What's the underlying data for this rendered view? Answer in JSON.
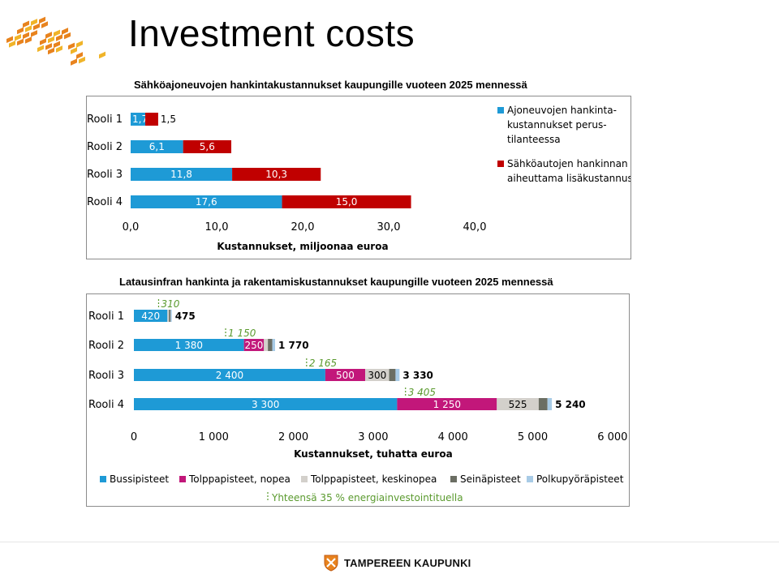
{
  "page": {
    "title": "Investment costs"
  },
  "colors": {
    "blue": "#1e9ad6",
    "red": "#c00000",
    "magenta": "#c2177a",
    "lightgray": "#d3d0cb",
    "darkgray": "#6b6e63",
    "lightblue": "#a8cbe6",
    "green": "#5a9a2e",
    "logo_orange": "#e8831e",
    "logo_yellow": "#f0b429"
  },
  "footer": {
    "brand_name": "TAMPEREEN KAUPUNKI"
  },
  "chart_data": [
    {
      "type": "bar",
      "orientation": "horizontal",
      "stacked": true,
      "title": "Sähköajoneuvojen hankintakustannukset kaupungille vuoteen 2025 mennessä",
      "categories": [
        "Rooli 1",
        "Rooli 2",
        "Rooli 3",
        "Rooli 4"
      ],
      "series": [
        {
          "name": "Ajoneuvojen hankinta-kustannukset perus-tilanteessa",
          "legend_lines": [
            "Ajoneuvojen hankinta-",
            "kustannukset perus-",
            "tilanteessa"
          ],
          "color": "#1e9ad6",
          "values": [
            1.7,
            6.1,
            11.8,
            17.6
          ],
          "labels": [
            "1,7",
            "6,1",
            "11,8",
            "17,6"
          ]
        },
        {
          "name": "Sähköautojen hankinnan aiheuttama lisäkustannus",
          "legend_lines": [
            "Sähköautojen hankinnan",
            "aiheuttama lisäkustannus"
          ],
          "color": "#c00000",
          "values": [
            1.5,
            5.6,
            10.3,
            15.0
          ],
          "labels": [
            "1,5",
            "5,6",
            "10,3",
            "15,0"
          ]
        }
      ],
      "xlabel": "Kustannukset, miljoonaa euroa",
      "xlim": [
        0,
        40
      ],
      "xticks": [
        0,
        10,
        20,
        30,
        40
      ],
      "xtick_labels": [
        "0,0",
        "10,0",
        "20,0",
        "30,0",
        "40,0"
      ],
      "legend_position": "right",
      "grid": false
    },
    {
      "type": "bar",
      "orientation": "horizontal",
      "stacked": true,
      "title": "Latausinfran hankinta ja  rakentamiskustannukset kaupungille vuoteen 2025 mennessä",
      "categories": [
        "Rooli 1",
        "Rooli 2",
        "Rooli 3",
        "Rooli 4"
      ],
      "series": [
        {
          "name": "Bussipisteet",
          "color": "#1e9ad6",
          "values": [
            420,
            1380,
            2400,
            3300
          ],
          "labels": [
            "420",
            "1 380",
            "2 400",
            "3 300"
          ]
        },
        {
          "name": "Tolppapisteet, nopea",
          "color": "#c2177a",
          "values": [
            0,
            250,
            500,
            1250
          ],
          "labels": [
            "",
            "250",
            "500",
            "1 250"
          ]
        },
        {
          "name": "Tolppapisteet, keskinopea",
          "color": "#d3d0cb",
          "values": [
            20,
            50,
            300,
            525
          ],
          "labels": [
            "",
            "",
            "300",
            "525"
          ]
        },
        {
          "name": "Seinäpisteet",
          "color": "#6b6e63",
          "values": [
            20,
            55,
            80,
            110
          ],
          "labels": [
            "",
            "",
            "",
            ""
          ]
        },
        {
          "name": "Polkupyöräpisteet",
          "color": "#a8cbe6",
          "values": [
            15,
            35,
            50,
            55
          ],
          "labels": [
            "",
            "",
            "",
            ""
          ]
        }
      ],
      "totals": [
        475,
        1770,
        3330,
        5240
      ],
      "total_labels": [
        "475",
        "1 770",
        "3 330",
        "5 240"
      ],
      "energy_aid_values": [
        310,
        1150,
        2165,
        3405
      ],
      "energy_aid_labels": [
        "310",
        "1 150",
        "2 165",
        "3 405"
      ],
      "energy_aid_legend": "Yhteensä 35 % energiainvestointituella",
      "xlabel": "Kustannukset, tuhatta euroa",
      "xlim": [
        0,
        6000
      ],
      "xticks": [
        0,
        1000,
        2000,
        3000,
        4000,
        5000,
        6000
      ],
      "xtick_labels": [
        "0",
        "1 000",
        "2 000",
        "3 000",
        "4 000",
        "5 000",
        "6 000"
      ],
      "legend_position": "bottom",
      "grid": false
    }
  ]
}
